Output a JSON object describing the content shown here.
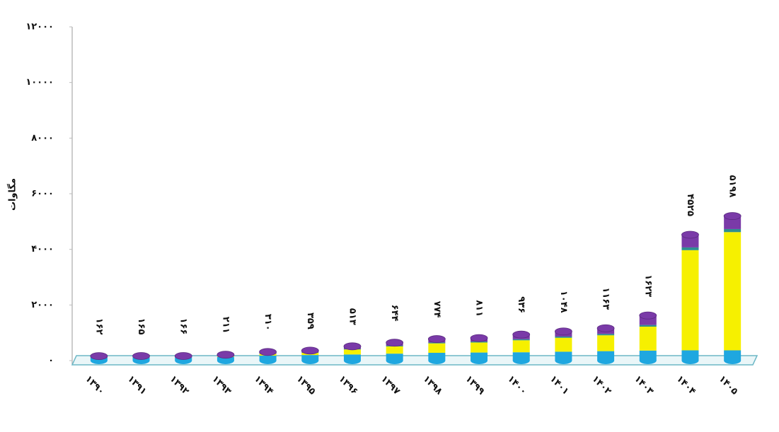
{
  "chart_data": {
    "type": "bar",
    "y_label": "مگاوات",
    "categories": [
      "۱۳۹۰",
      "۱۳۹۱",
      "۱۳۹۲",
      "۱۳۹۳",
      "۱۳۹۴",
      "۱۳۹۵",
      "۱۳۹۶",
      "۱۳۹۷",
      "۱۳۹۸",
      "۱۳۹۹",
      "۱۴۰۰",
      "۱۴۰۱",
      "۱۴۰۲",
      "۱۴۰۳",
      "۱۴۰۴",
      "۱۴۰۵"
    ],
    "values": [
      162,
      165,
      166,
      211,
      310,
      359,
      513,
      644,
      774,
      811,
      936,
      1048,
      1163,
      1623,
      4525,
      5198
    ],
    "value_labels": [
      "۱۶۲",
      "۱۶۵",
      "۱۶۶",
      "۲۱۱",
      "۳۱۰",
      "۳۵۹",
      "۵۱۳",
      "۶۴۴",
      "۷۷۴",
      "۸۱۱",
      "۹۳۶",
      "۱۰۴۸",
      "۱۱۶۳",
      "۱۶۲۳",
      "۴۵۲۵",
      "۵۱۹۸"
    ],
    "series": [
      {
        "color": "#1fa7e0",
        "values": [
          110,
          110,
          110,
          130,
          180,
          200,
          220,
          250,
          280,
          290,
          300,
          320,
          340,
          360,
          370,
          370
        ]
      },
      {
        "color": "#f6f000",
        "values": [
          0,
          0,
          0,
          20,
          60,
          80,
          180,
          260,
          340,
          360,
          430,
          500,
          570,
          860,
          3600,
          4250
        ]
      },
      {
        "color": "#2f8f8f",
        "values": [
          10,
          10,
          10,
          10,
          10,
          15,
          20,
          25,
          30,
          35,
          40,
          45,
          50,
          60,
          100,
          110
        ]
      },
      {
        "color": "#7a3aa8",
        "values": [
          42,
          45,
          46,
          51,
          60,
          64,
          93,
          109,
          124,
          126,
          166,
          183,
          203,
          343,
          455,
          468
        ]
      }
    ],
    "stacked": true,
    "ylim": [
      0,
      12000
    ],
    "yticks": [
      {
        "value": 0,
        "label": "۰"
      },
      {
        "value": 2000,
        "label": "۲۰۰۰"
      },
      {
        "value": 4000,
        "label": "۴۰۰۰"
      },
      {
        "value": 6000,
        "label": "۶۰۰۰"
      },
      {
        "value": 8000,
        "label": "۸۰۰۰"
      },
      {
        "value": 10000,
        "label": "۱۰۰۰۰"
      },
      {
        "value": 12000,
        "label": "۱۲۰۰۰"
      }
    ],
    "grid": false
  }
}
